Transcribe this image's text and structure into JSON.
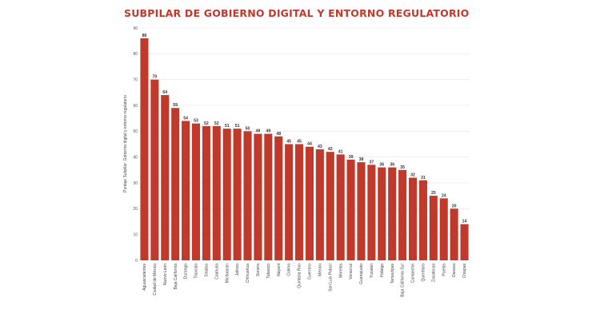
{
  "chart_data": {
    "type": "bar",
    "title": "SUBPILAR DE GOBIERNO DIGITAL Y ENTORNO REGULATORIO",
    "ylabel": "Puntaje Subpilar: Gobierno digital y  entorno regulatorio",
    "xlabel": "",
    "ylim": [
      0,
      90
    ],
    "yticks": [
      0,
      10,
      20,
      30,
      40,
      50,
      60,
      70,
      80,
      90
    ],
    "grid": true,
    "bar_color": "#c0392b",
    "categories": [
      "Aguascalientes",
      "Ciudad de México",
      "Nuevo León",
      "Baja California",
      "Durango",
      "Tlaxcala",
      "Sinaloa",
      "Coahuila",
      "Michoacán",
      "Jalisco",
      "Chihuahua",
      "Sonora",
      "Tabasco",
      "Nayarit",
      "Colima",
      "Quintana Roo",
      "Guerrero",
      "México",
      "San Luis Potosí",
      "Morelos",
      "Veracruz",
      "Guanajuato",
      "Yucatán",
      "Hidalgo",
      "Tamaulipas",
      "Baja California Sur",
      "Campeche",
      "Querétaro",
      "Zacatecas",
      "Puebla",
      "Oaxaca",
      "Chiapas"
    ],
    "values": [
      86,
      70,
      64,
      59,
      54,
      53,
      52,
      52,
      51,
      51,
      50,
      49,
      49,
      48,
      45,
      45,
      44,
      43,
      42,
      41,
      39,
      38,
      37,
      36,
      36,
      35,
      32,
      31,
      25,
      24,
      20,
      14
    ]
  }
}
